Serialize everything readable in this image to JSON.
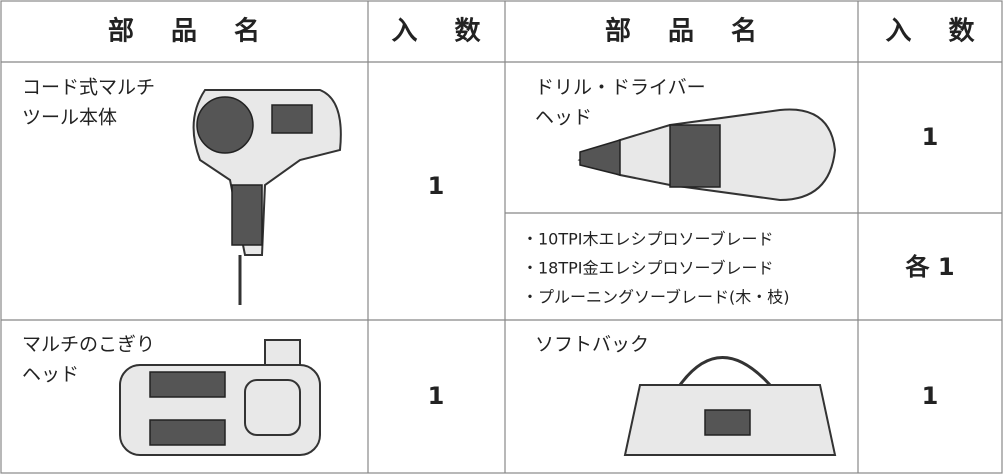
{
  "header": [
    "部 品 名",
    "入 数",
    "部 品 名",
    "入 数"
  ],
  "left_items": [
    {
      "name_lines": [
        "コード式マルチ",
        "ツール本体"
      ],
      "quantity": "1"
    },
    {
      "name_lines": [
        "マルチのこぎり",
        "ヘッド"
      ],
      "quantity": "1"
    }
  ],
  "right_items": [
    {
      "name_lines": [
        "ドリル・ドライバー",
        "ヘッド"
      ],
      "quantity": "1"
    },
    {
      "name_lines": [
        "・10TPI木エレシプロソーブレード",
        "・18TPI金エレシプロソーブレード",
        "・プルーニングソーブレード(木・枝)"
      ],
      "quantity": "各 1"
    },
    {
      "name_lines": [
        "ソフトバック"
      ],
      "quantity": "1"
    }
  ]
}
